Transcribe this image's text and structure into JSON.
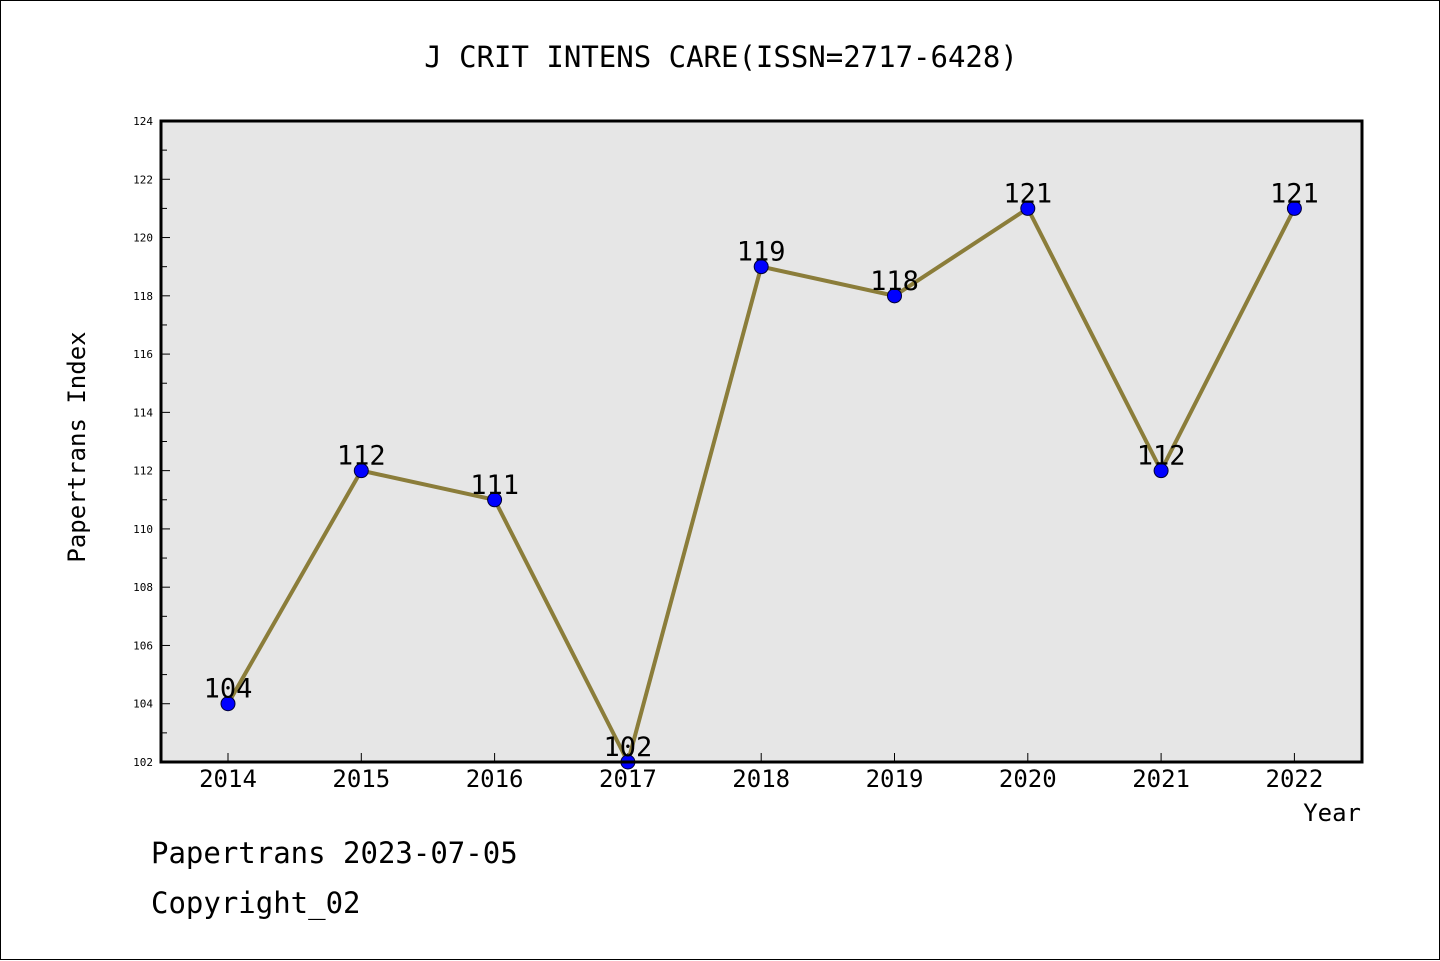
{
  "chart_data": {
    "type": "line",
    "title": "J CRIT INTENS CARE(ISSN=2717-6428)",
    "xlabel": "Year",
    "ylabel": "Papertrans Index",
    "categories": [
      "2014",
      "2015",
      "2016",
      "2017",
      "2018",
      "2019",
      "2020",
      "2021",
      "2022"
    ],
    "values": [
      104,
      112,
      111,
      102,
      119,
      118,
      121,
      112,
      121
    ],
    "ylim": [
      102,
      124
    ],
    "yticks": [
      "102",
      "104",
      "106",
      "108",
      "110",
      "112",
      "114",
      "116",
      "118",
      "120",
      "122",
      "124"
    ],
    "data_labels": [
      "104",
      "112",
      "111",
      "102",
      "119",
      "118",
      "121",
      "112",
      "121"
    ],
    "grid": false,
    "colors": {
      "line": "#8b7d3a",
      "marker": "#0000ff",
      "plot_background": "#e6e6e6"
    }
  },
  "footer": {
    "line1": "Papertrans 2023-07-05",
    "line2": "Copyright_02"
  }
}
